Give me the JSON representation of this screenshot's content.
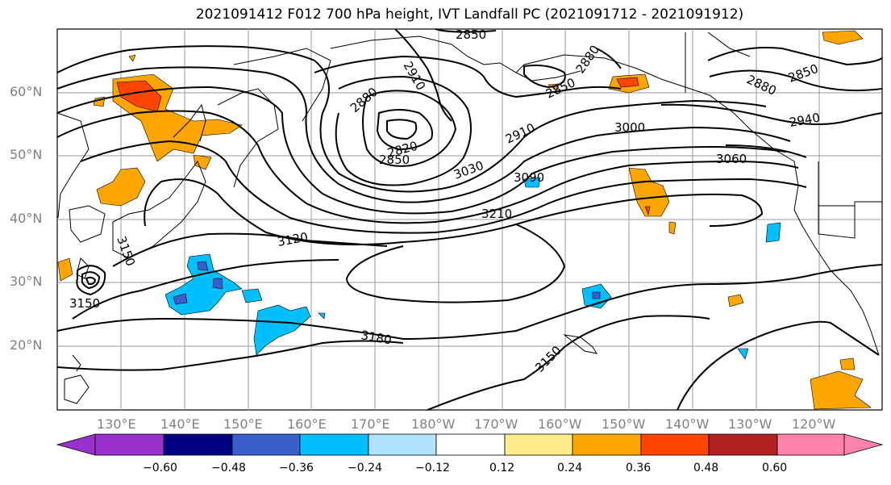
{
  "title": "2021091412 F012 700 hPa height, IVT Landfall PC (2021091712 - 2021091912)",
  "lat_labels": [
    "60°N",
    "50°N",
    "40°N",
    "30°N",
    "20°N"
  ],
  "lon_labels": [
    "130°E",
    "140°E",
    "150°E",
    "160°E",
    "170°E",
    "180°W",
    "170°W",
    "160°W",
    "150°W",
    "140°W",
    "130°W",
    "120°W"
  ],
  "contour_labels": [
    "2850",
    "2910",
    "2880",
    "2850",
    "2820",
    "2850",
    "2880",
    "2850",
    "2880",
    "2910",
    "3000",
    "2940",
    "3030",
    "3090",
    "3060",
    "3210",
    "3120",
    "3150",
    "3150",
    "3180",
    "3150"
  ],
  "colorbar": {
    "ticks": [
      "−0.60",
      "−0.48",
      "−0.36",
      "−0.24",
      "−0.12",
      "0.12",
      "0.24",
      "0.36",
      "0.48",
      "0.60"
    ],
    "colors": [
      "#9932cc",
      "#000080",
      "#3a5fcd",
      "#00bfff",
      "#b0e2ff",
      "#ffffff",
      "#ffec8b",
      "#ffa500",
      "#ff4500",
      "#b22222",
      "#ff82ab"
    ]
  }
}
